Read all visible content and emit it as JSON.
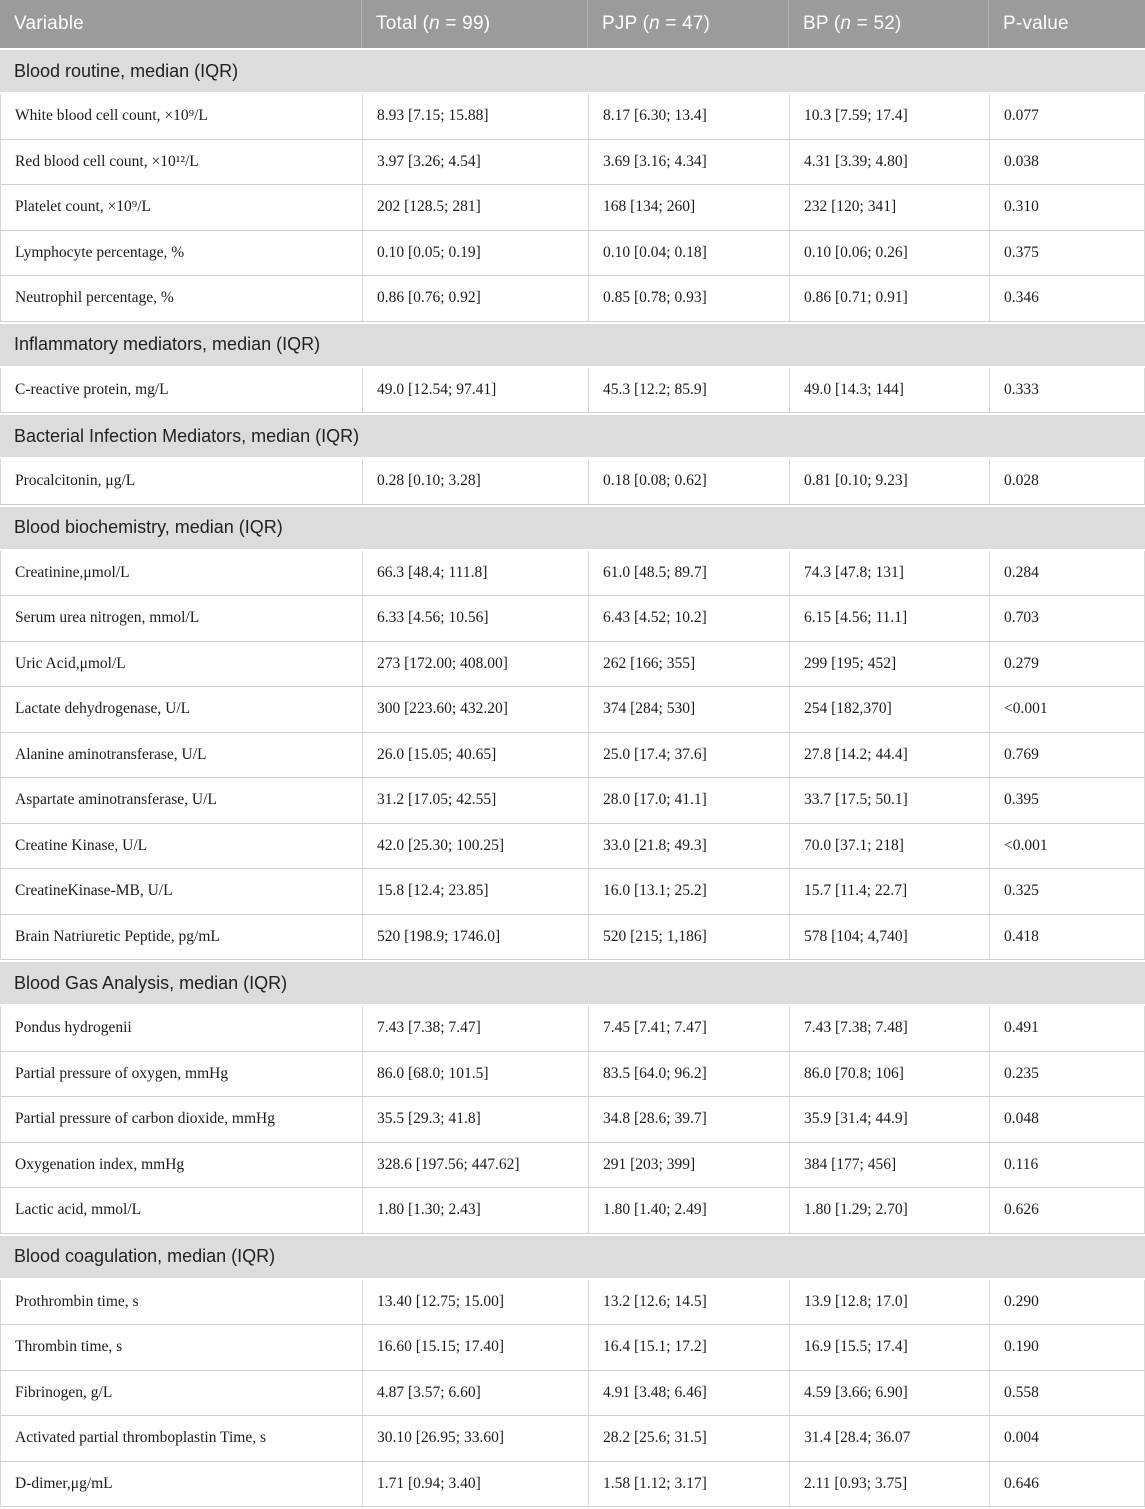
{
  "colors": {
    "header_background": "#9b9b9b",
    "header_text": "#ffffff",
    "section_background": "#dcdcdc",
    "row_background": "#ffffff",
    "border": "#d8d8d8",
    "body_text": "#1c1c1c"
  },
  "header": {
    "columns": [
      {
        "label": "Variable"
      },
      {
        "prefix": "Total (",
        "n": "n",
        "suffix": " = 99)"
      },
      {
        "prefix": "PJP (",
        "n": "n",
        "suffix": " = 47)"
      },
      {
        "prefix": "BP (",
        "n": "n",
        "suffix": " = 52)"
      },
      {
        "label": "P-value"
      }
    ]
  },
  "sections": [
    {
      "title": "Blood routine, median (IQR)",
      "rows": [
        {
          "variable": "White blood cell count, ×10⁹/L",
          "total": "8.93 [7.15; 15.88]",
          "pjp": "8.17 [6.30; 13.4]",
          "bp": "10.3 [7.59; 17.4]",
          "p": "0.077"
        },
        {
          "variable": "Red blood cell count, ×10¹²/L",
          "total": "3.97 [3.26; 4.54]",
          "pjp": "3.69 [3.16; 4.34]",
          "bp": "4.31 [3.39; 4.80]",
          "p": "0.038"
        },
        {
          "variable": "Platelet count, ×10⁹/L",
          "total": "202 [128.5; 281]",
          "pjp": "168 [134; 260]",
          "bp": "232 [120; 341]",
          "p": "0.310"
        },
        {
          "variable": "Lymphocyte percentage, %",
          "total": "0.10 [0.05; 0.19]",
          "pjp": "0.10 [0.04; 0.18]",
          "bp": "0.10 [0.06; 0.26]",
          "p": "0.375"
        },
        {
          "variable": "Neutrophil percentage, %",
          "total": "0.86 [0.76; 0.92]",
          "pjp": "0.85 [0.78; 0.93]",
          "bp": "0.86 [0.71; 0.91]",
          "p": "0.346"
        }
      ]
    },
    {
      "title": "Inflammatory mediators, median (IQR)",
      "rows": [
        {
          "variable": "C-reactive protein, mg/L",
          "total": "49.0 [12.54; 97.41]",
          "pjp": "45.3 [12.2; 85.9]",
          "bp": "49.0 [14.3; 144]",
          "p": "0.333"
        }
      ]
    },
    {
      "title": "Bacterial Infection Mediators, median (IQR)",
      "rows": [
        {
          "variable": "Procalcitonin, μg/L",
          "total": "0.28 [0.10; 3.28]",
          "pjp": "0.18 [0.08; 0.62]",
          "bp": "0.81 [0.10; 9.23]",
          "p": "0.028"
        }
      ]
    },
    {
      "title": "Blood biochemistry, median (IQR)",
      "rows": [
        {
          "variable": "Creatinine,μmol/L",
          "total": "66.3 [48.4; 111.8]",
          "pjp": "61.0 [48.5; 89.7]",
          "bp": "74.3 [47.8; 131]",
          "p": "0.284"
        },
        {
          "variable": "Serum urea nitrogen, mmol/L",
          "total": "6.33 [4.56; 10.56]",
          "pjp": "6.43 [4.52; 10.2]",
          "bp": "6.15 [4.56; 11.1]",
          "p": "0.703"
        },
        {
          "variable": "Uric Acid,μmol/L",
          "total": "273 [172.00; 408.00]",
          "pjp": "262 [166; 355]",
          "bp": "299 [195; 452]",
          "p": "0.279"
        },
        {
          "variable": "Lactate dehydrogenase, U/L",
          "total": "300 [223.60; 432.20]",
          "pjp": "374 [284; 530]",
          "bp": "254 [182,370]",
          "p": "<0.001"
        },
        {
          "variable": "Alanine aminotransferase, U/L",
          "total": "26.0 [15.05; 40.65]",
          "pjp": "25.0 [17.4; 37.6]",
          "bp": "27.8 [14.2; 44.4]",
          "p": "0.769"
        },
        {
          "variable": "Aspartate aminotransferase, U/L",
          "total": "31.2 [17.05; 42.55]",
          "pjp": "28.0 [17.0; 41.1]",
          "bp": "33.7 [17.5; 50.1]",
          "p": "0.395"
        },
        {
          "variable": "Creatine Kinase, U/L",
          "total": "42.0 [25.30; 100.25]",
          "pjp": "33.0 [21.8; 49.3]",
          "bp": "70.0 [37.1; 218]",
          "p": "<0.001"
        },
        {
          "variable": "CreatineKinase-MB, U/L",
          "total": "15.8 [12.4; 23.85]",
          "pjp": "16.0 [13.1; 25.2]",
          "bp": "15.7 [11.4; 22.7]",
          "p": "0.325"
        },
        {
          "variable": "Brain Natriuretic Peptide, pg/mL",
          "total": "520 [198.9; 1746.0]",
          "pjp": "520 [215; 1,186]",
          "bp": "578 [104; 4,740]",
          "p": "0.418"
        }
      ]
    },
    {
      "title": "Blood Gas Analysis, median (IQR)",
      "rows": [
        {
          "variable": "Pondus hydrogenii",
          "total": "7.43 [7.38; 7.47]",
          "pjp": "7.45 [7.41; 7.47]",
          "bp": "7.43 [7.38; 7.48]",
          "p": "0.491"
        },
        {
          "variable": "Partial pressure of oxygen, mmHg",
          "total": "86.0 [68.0; 101.5]",
          "pjp": "83.5 [64.0; 96.2]",
          "bp": "86.0 [70.8; 106]",
          "p": "0.235"
        },
        {
          "variable": "Partial pressure of carbon dioxide, mmHg",
          "total": "35.5 [29.3; 41.8]",
          "pjp": "34.8 [28.6; 39.7]",
          "bp": "35.9 [31.4; 44.9]",
          "p": "0.048"
        },
        {
          "variable": "Oxygenation index, mmHg",
          "total": "328.6 [197.56; 447.62]",
          "pjp": "291 [203; 399]",
          "bp": "384 [177; 456]",
          "p": "0.116"
        },
        {
          "variable": "Lactic acid, mmol/L",
          "total": "1.80 [1.30; 2.43]",
          "pjp": "1.80 [1.40; 2.49]",
          "bp": "1.80 [1.29; 2.70]",
          "p": "0.626"
        }
      ]
    },
    {
      "title": "Blood coagulation, median (IQR)",
      "rows": [
        {
          "variable": "Prothrombin time, s",
          "total": "13.40 [12.75; 15.00]",
          "pjp": "13.2 [12.6; 14.5]",
          "bp": "13.9 [12.8; 17.0]",
          "p": "0.290"
        },
        {
          "variable": "Thrombin time, s",
          "total": "16.60 [15.15; 17.40]",
          "pjp": "16.4 [15.1; 17.2]",
          "bp": "16.9 [15.5; 17.4]",
          "p": "0.190"
        },
        {
          "variable": "Fibrinogen, g/L",
          "total": "4.87 [3.57; 6.60]",
          "pjp": "4.91 [3.48; 6.46]",
          "bp": "4.59 [3.66; 6.90]",
          "p": "0.558"
        },
        {
          "variable": "Activated partial thromboplastin Time, s",
          "total": "30.10 [26.95; 33.60]",
          "pjp": "28.2 [25.6; 31.5]",
          "bp": "31.4 [28.4; 36.07",
          "p": "0.004"
        },
        {
          "variable": "D-dimer,μg/mL",
          "total": "1.71 [0.94; 3.40]",
          "pjp": "1.58 [1.12; 3.17]",
          "bp": "2.11 [0.93; 3.75]",
          "p": "0.646"
        }
      ]
    }
  ]
}
